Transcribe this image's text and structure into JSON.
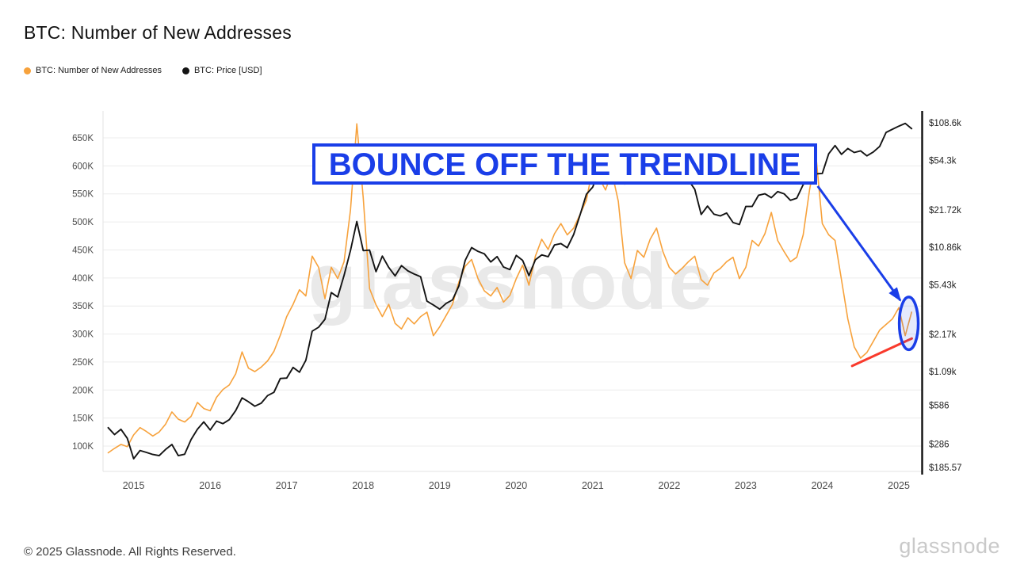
{
  "page": {
    "title": "BTC: Number of New Addresses",
    "watermark": "glassnode",
    "footer": {
      "copyright": "© 2025 Glassnode. All Rights Reserved.",
      "brand": "glassnode"
    }
  },
  "annotation": {
    "box_text": "BOUNCE OFF THE TRENDLINE",
    "color": "#1a3ee8"
  },
  "chart_data": {
    "type": "line",
    "title": "BTC: Number of New Addresses",
    "grid": "horizontal",
    "legend_position": "top-left",
    "x_domain_years": [
      2014.6,
      2025.3
    ],
    "x_tick_years": [
      2015,
      2016,
      2017,
      2018,
      2019,
      2020,
      2021,
      2022,
      2023,
      2024,
      2025
    ],
    "x_tick_labels": [
      "2015",
      "2016",
      "2017",
      "2018",
      "2019",
      "2020",
      "2021",
      "2022",
      "2023",
      "2024",
      "2025"
    ],
    "x_start_year": 2014.667,
    "x_step_years": 0.0833333,
    "left_axis": {
      "scale": "linear",
      "unit": "new addresses (thousands)",
      "tick_labels": [
        "650K",
        "600K",
        "550K",
        "500K",
        "450K",
        "400K",
        "350K",
        "300K",
        "250K",
        "200K",
        "150K",
        "100K"
      ],
      "tick_values_k": [
        650,
        600,
        550,
        500,
        450,
        400,
        350,
        300,
        250,
        200,
        150,
        100
      ],
      "range_k": [
        54.8,
        698.1
      ]
    },
    "right_axis": {
      "scale": "log",
      "unit": "USD",
      "tick_labels": [
        "$108.6k",
        "$54.3k",
        "$21.72k",
        "$10.86k",
        "$5.43k",
        "$2.17k",
        "$1.09k",
        "$586",
        "$286",
        "$185.57"
      ],
      "tick_values_usd": [
        108600,
        54300,
        21720,
        10860,
        5430,
        2170,
        1090,
        586,
        286,
        185.57
      ],
      "range_usd": [
        172.5,
        135270
      ]
    },
    "series": [
      {
        "name": "BTC: Number of New Addresses",
        "axis": "left",
        "color": "#f7a23c",
        "unit": "K",
        "values": [
          88,
          96,
          103,
          99,
          120,
          133,
          126,
          118,
          125,
          139,
          161,
          148,
          143,
          153,
          178,
          167,
          163,
          187,
          201,
          209,
          229,
          268,
          239,
          233,
          241,
          252,
          269,
          298,
          331,
          353,
          379,
          368,
          439,
          419,
          363,
          419,
          399,
          429,
          521,
          675,
          543,
          381,
          352,
          331,
          353,
          319,
          309,
          329,
          318,
          331,
          339,
          297,
          313,
          333,
          353,
          393,
          421,
          433,
          399,
          377,
          368,
          383,
          357,
          369,
          399,
          423,
          387,
          439,
          469,
          451,
          479,
          497,
          477,
          489,
          513,
          539,
          597,
          579,
          557,
          589,
          537,
          427,
          399,
          449,
          437,
          469,
          489,
          447,
          419,
          407,
          417,
          429,
          439,
          397,
          387,
          409,
          417,
          429,
          437,
          399,
          419,
          467,
          457,
          479,
          517,
          467,
          447,
          429,
          437,
          477,
          557,
          619,
          497,
          477,
          467,
          397,
          327,
          277,
          257,
          267,
          287,
          307,
          317,
          327,
          347,
          297,
          339
        ]
      },
      {
        "name": "BTC: Price [USD]",
        "axis": "right",
        "color": "#141414",
        "unit": "USD",
        "values": [
          387,
          341,
          376,
          318,
          218,
          254,
          245,
          236,
          231,
          259,
          284,
          231,
          237,
          311,
          376,
          431,
          371,
          437,
          417,
          449,
          531,
          672,
          625,
          576,
          609,
          701,
          744,
          961,
          968,
          1180,
          1079,
          1347,
          2304,
          2482,
          2873,
          4703,
          4338,
          6468,
          10234,
          17500,
          10220,
          10310,
          6928,
          9244,
          7487,
          6404,
          7752,
          7033,
          6626,
          6317,
          4017,
          3742,
          3463,
          3854,
          4105,
          5324,
          8558,
          10818,
          10082,
          9631,
          8293,
          9152,
          7546,
          7193,
          9349,
          8543,
          6438,
          8624,
          9454,
          9137,
          11351,
          11655,
          10776,
          13797,
          19698,
          28994,
          33108,
          45137,
          58787,
          57750,
          37332,
          35041,
          41461,
          47130,
          43790,
          61318,
          56987,
          46217,
          38483,
          43193,
          45539,
          37644,
          31792,
          19943,
          23293,
          20050,
          19432,
          20490,
          17163,
          16548,
          23127,
          23142,
          28473,
          29233,
          27219,
          30472,
          29232,
          25932,
          26968,
          34656,
          37719,
          42265,
          42582,
          61199,
          71333,
          60637,
          67540,
          62678,
          64628,
          58969,
          63329,
          70215,
          91000,
          96400,
          102100,
          107500,
          97500
        ]
      }
    ],
    "annotations": {
      "trendline": {
        "color": "#f93a2c",
        "x_years": [
          2024.39,
          2025.17
        ],
        "y_k": [
          243,
          292
        ]
      },
      "ellipse": {
        "color": "#1a3ee8",
        "center_year": 2025.13,
        "center_k": 319,
        "rx_years": 0.124,
        "ry_k": 47
      },
      "arrow": {
        "color": "#1a3ee8",
        "from_year": 2023.94,
        "from_k": 564,
        "to_year": 2025.02,
        "to_k": 360
      }
    }
  }
}
